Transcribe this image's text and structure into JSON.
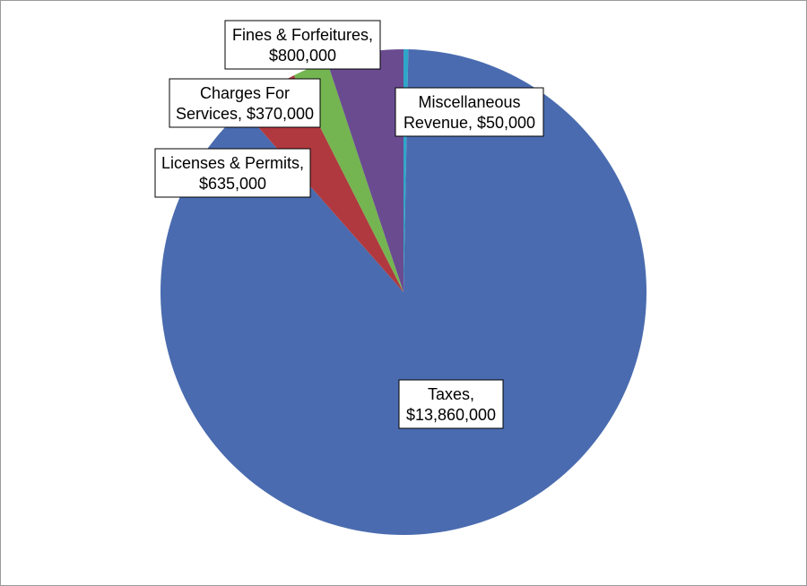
{
  "chart_data": {
    "type": "pie",
    "title": "",
    "slices": [
      {
        "name": "Taxes",
        "value": 13860000,
        "line1": "Taxes,",
        "line2": "$13,860,000",
        "color": "#4a6baf"
      },
      {
        "name": "Licenses & Permits",
        "value": 635000,
        "line1": "Licenses & Permits,",
        "line2": "$635,000",
        "color": "#b0393f"
      },
      {
        "name": "Charges For Services",
        "value": 370000,
        "line1": "Charges For",
        "line2": "Services, $370,000",
        "color": "#74b551"
      },
      {
        "name": "Fines & Forfeitures",
        "value": 800000,
        "line1": "Fines & Forfeitures,",
        "line2": "$800,000",
        "color": "#6a4b90"
      },
      {
        "name": "Miscellaneous Revenue",
        "value": 50000,
        "line1": "Miscellaneous",
        "line2": "Revenue, $50,000",
        "color": "#2fa6c9"
      }
    ]
  }
}
